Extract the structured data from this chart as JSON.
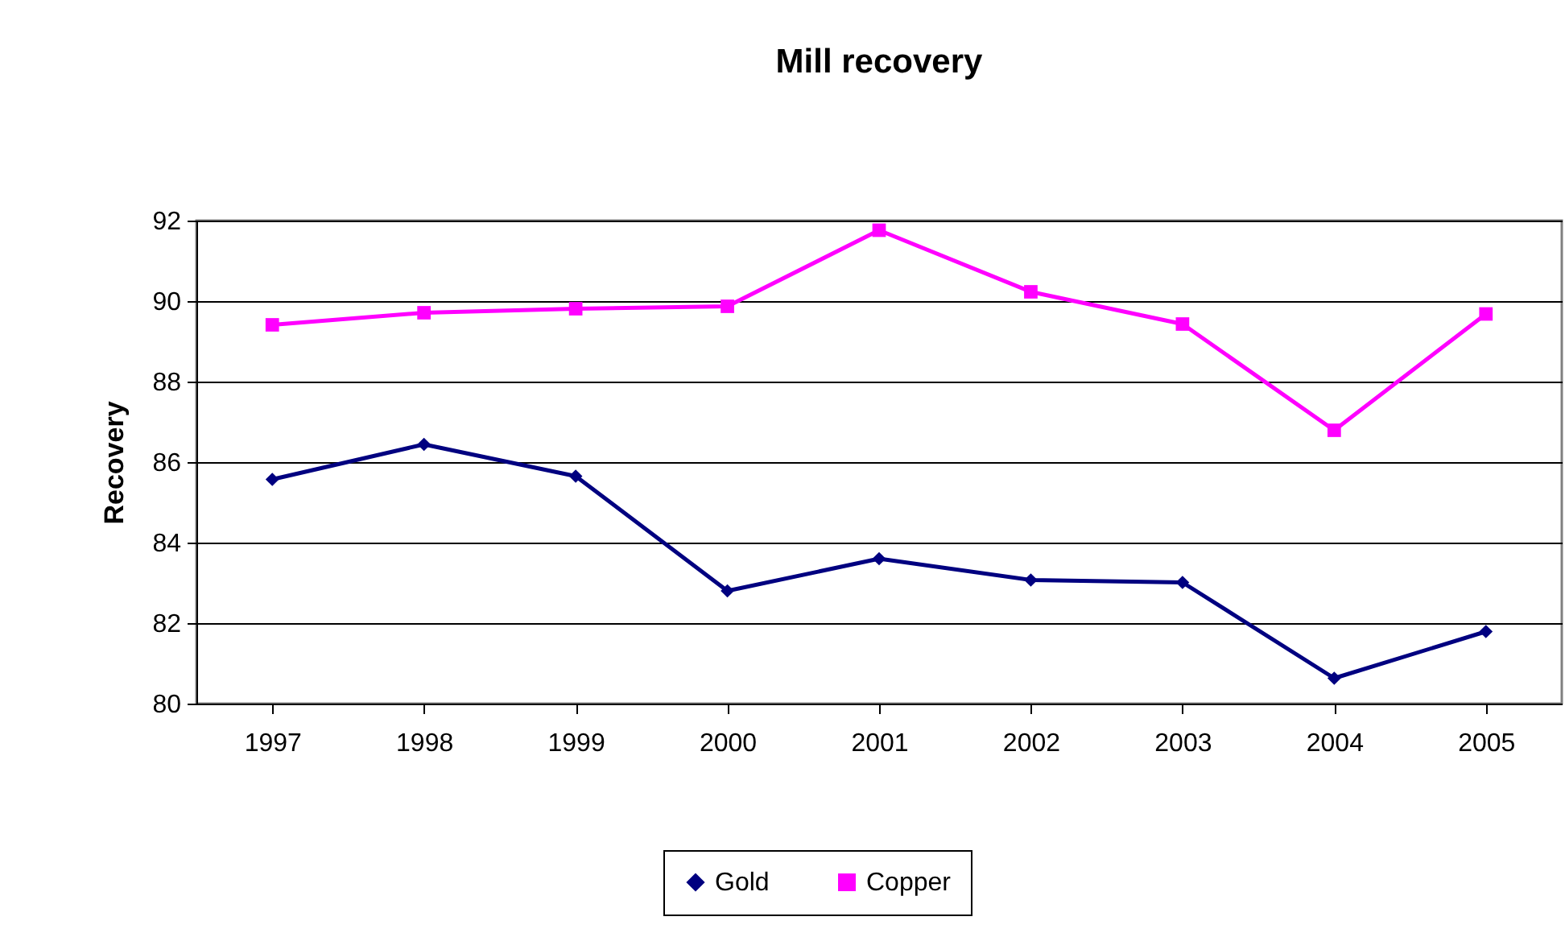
{
  "chart_data": {
    "type": "line",
    "title": "Mill recovery",
    "ylabel": "Recovery",
    "categories": [
      "1997",
      "1998",
      "1999",
      "2000",
      "2001",
      "2002",
      "2003",
      "2004",
      "2005"
    ],
    "series": [
      {
        "name": "Gold",
        "color": "#000080",
        "marker": "diamond",
        "values": [
          85.57,
          86.44,
          85.65,
          82.8,
          83.6,
          83.07,
          83.01,
          80.63,
          81.79
        ]
      },
      {
        "name": "Copper",
        "color": "#ff00ff",
        "marker": "square",
        "values": [
          89.41,
          89.71,
          89.81,
          89.87,
          91.76,
          90.23,
          89.43,
          86.79,
          89.68
        ]
      }
    ],
    "ylim": [
      80,
      92
    ],
    "yticks": [
      80,
      82,
      84,
      86,
      88,
      90,
      92
    ],
    "grid": "y",
    "legend": "bottom",
    "line_style": "solid"
  }
}
